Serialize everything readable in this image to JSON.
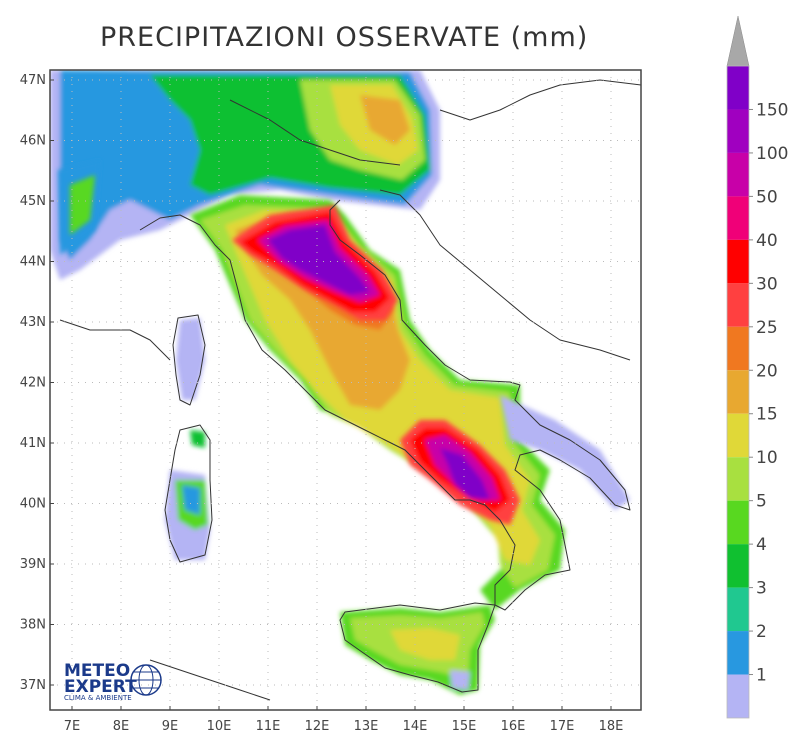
{
  "title": "PRECIPITAZIONI OSSERVATE (mm)",
  "lat_labels": [
    "47N",
    "46N",
    "45N",
    "44N",
    "43N",
    "42N",
    "41N",
    "40N",
    "39N",
    "38N",
    "37N"
  ],
  "lon_labels": [
    "7E",
    "8E",
    "9E",
    "10E",
    "11E",
    "12E",
    "13E",
    "14E",
    "15E",
    "16E",
    "17E",
    "18E"
  ],
  "legend": {
    "labels": [
      "150",
      "100",
      "50",
      "40",
      "30",
      "25",
      "20",
      "15",
      "10",
      "5",
      "4",
      "3",
      "2",
      "1"
    ],
    "colors": [
      "#8000c8",
      "#a000c0",
      "#c800a8",
      "#f00078",
      "#ff0000",
      "#ff4040",
      "#f07820",
      "#e8a830",
      "#e0d838",
      "#a8e040",
      "#58d820",
      "#10c030",
      "#20c890",
      "#2898e0",
      "#b4b4f4"
    ],
    "top_color": "#a8a8a8"
  },
  "logo": {
    "main": "METEO",
    "main2": "EXPERT",
    "sub": "CLIMA & AMBIENTE"
  },
  "colors": {
    "coast": "#333333",
    "frame": "#444444"
  }
}
